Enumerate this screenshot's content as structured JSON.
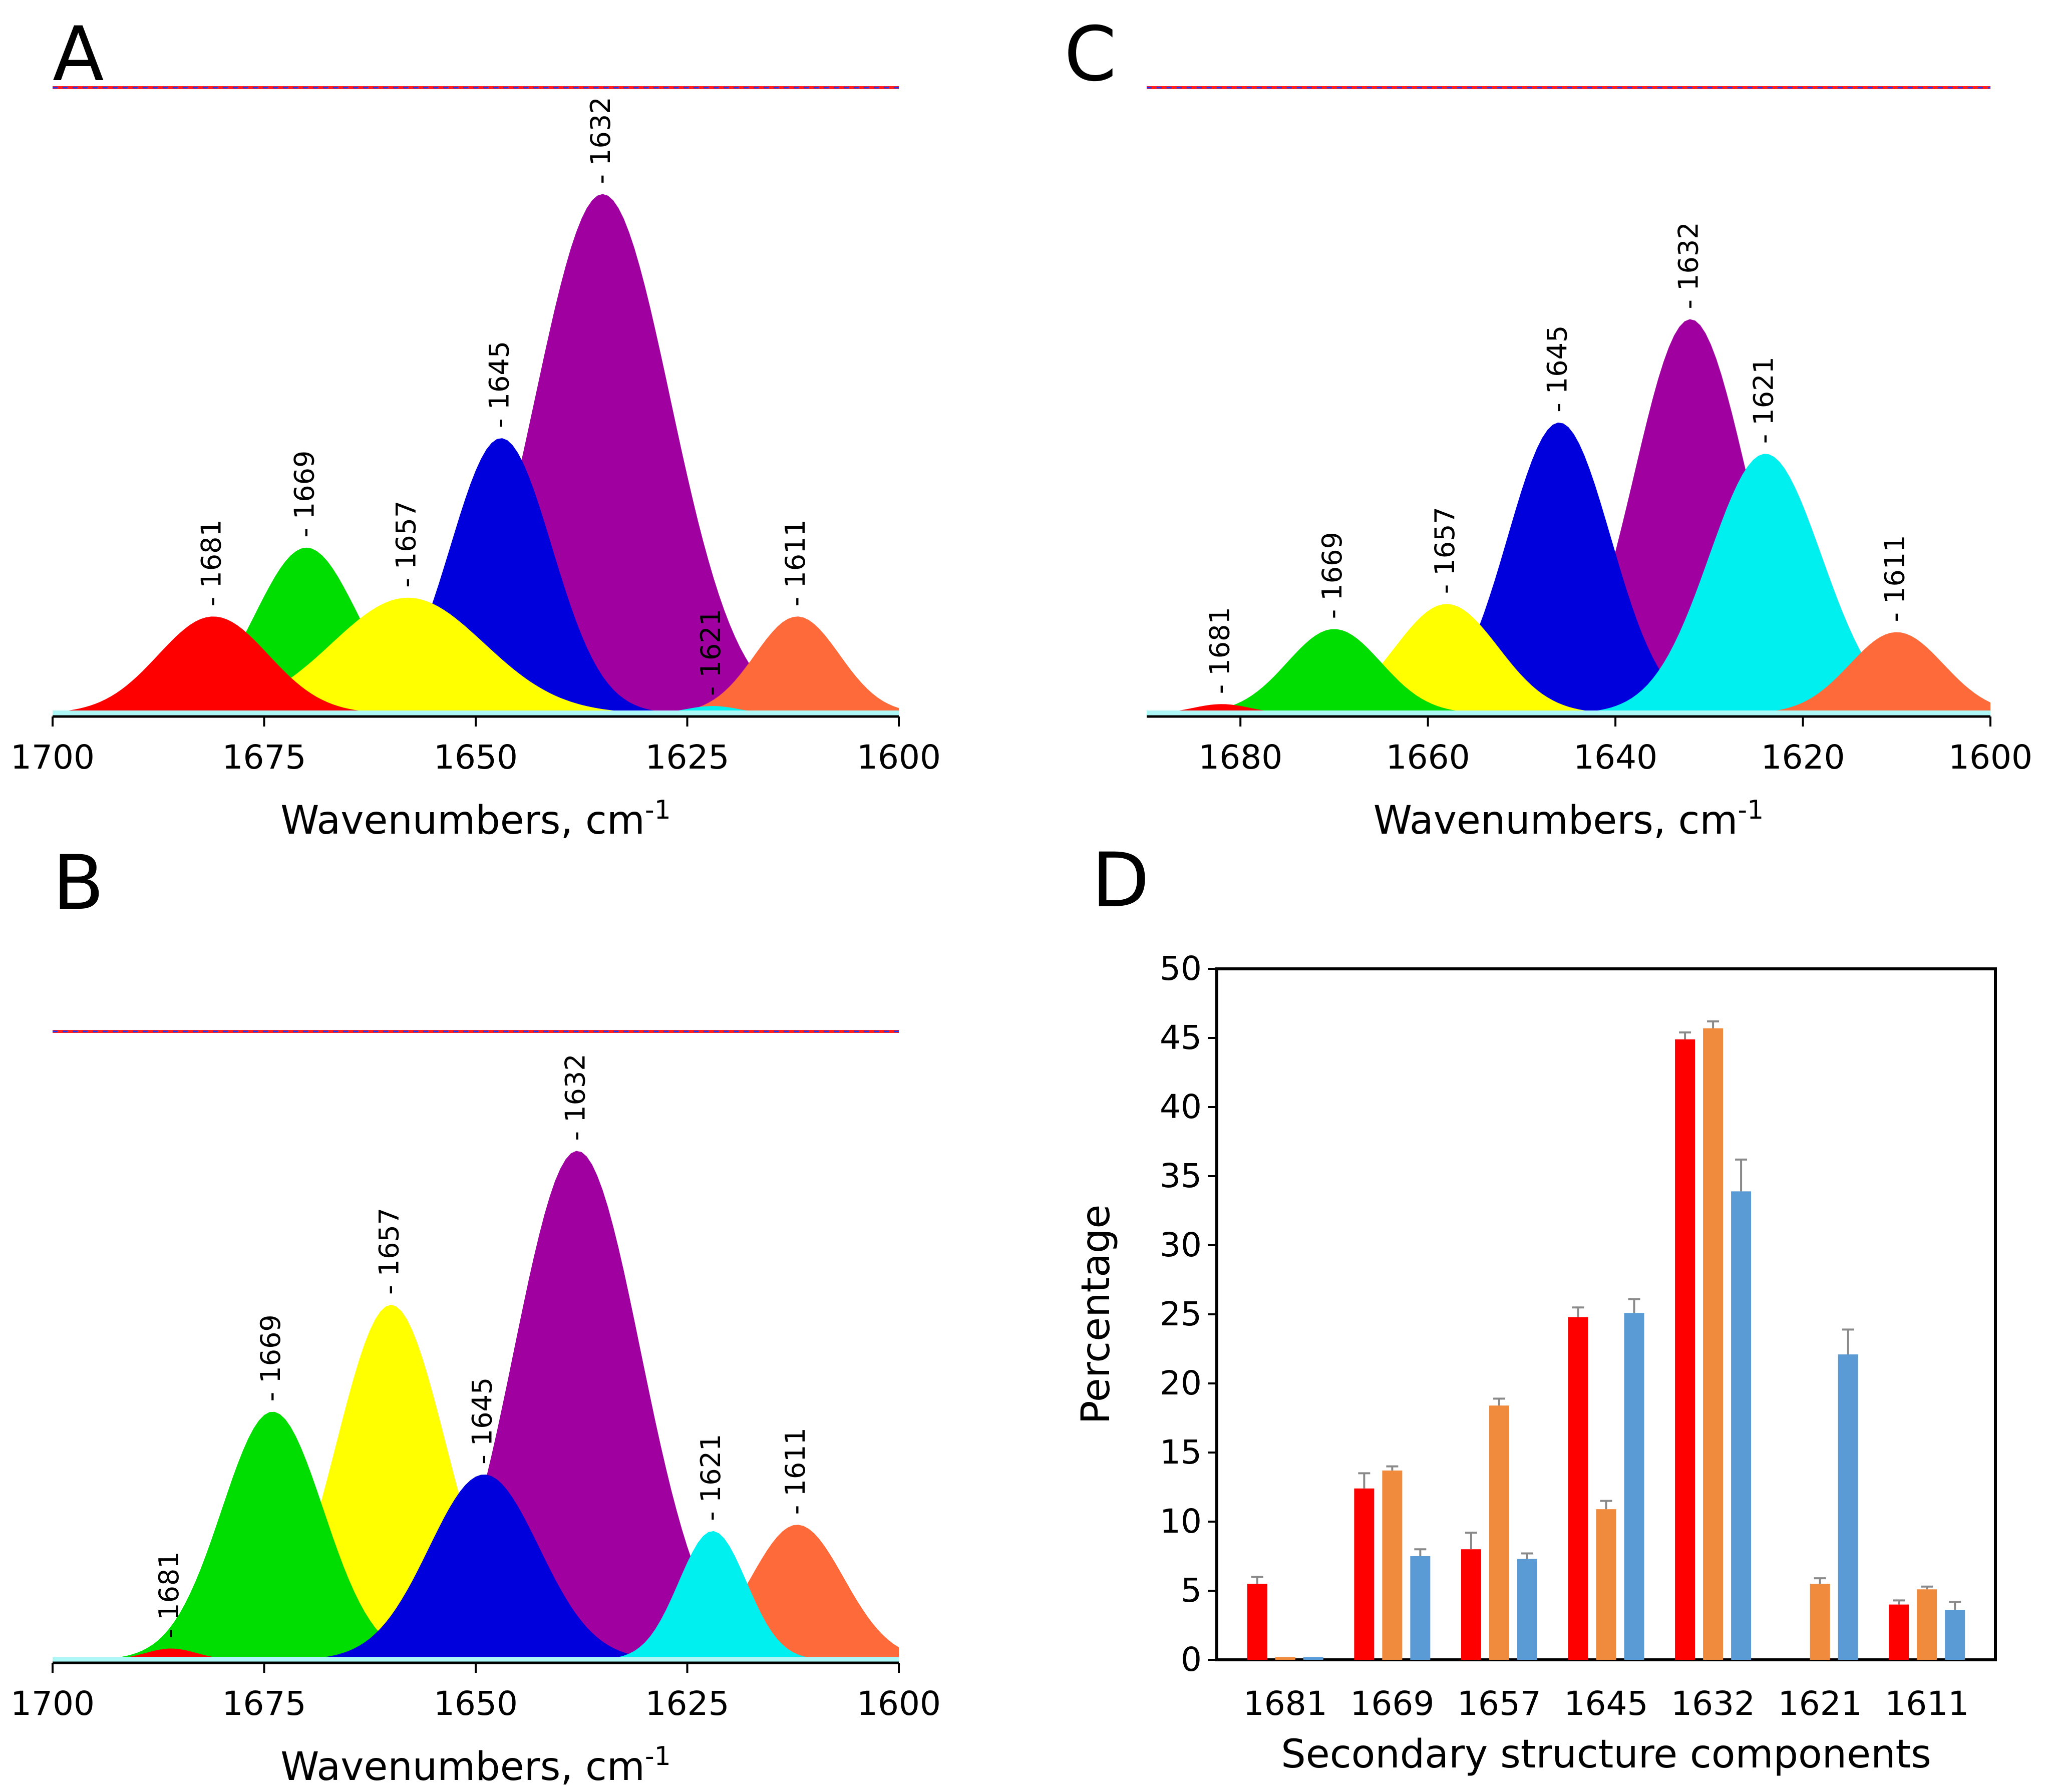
{
  "figure": {
    "panels": [
      "A",
      "B",
      "C",
      "D"
    ]
  },
  "chart_data": [
    {
      "panel": "A",
      "type": "area",
      "title": "",
      "xlabel": "Wavenumbers, cm-1",
      "xlabel_main": "Wavenumbers, cm",
      "xlabel_sup": "-1",
      "ylabel": "",
      "xlim": [
        1700,
        1600
      ],
      "ylim": [
        0,
        1.0
      ],
      "xticks": [
        1700,
        1675,
        1650,
        1625,
        1600
      ],
      "xtick_labels": [
        "1700",
        "1675",
        "1650",
        "1625",
        "1600"
      ],
      "envelope_peak": {
        "x": 1636,
        "y": 1.0
      },
      "series": [
        {
          "name": "1681",
          "label": "1681",
          "center": 1681,
          "amplitude": 0.155,
          "width": 6.5,
          "color": "#ff0000"
        },
        {
          "name": "1669",
          "label": "1669",
          "center": 1670,
          "amplitude": 0.265,
          "width": 6.0,
          "color": "#00dd00"
        },
        {
          "name": "1657",
          "label": "1657",
          "center": 1658,
          "amplitude": 0.185,
          "width": 9.0,
          "color": "#ffff00"
        },
        {
          "name": "1645",
          "label": "1645",
          "center": 1647,
          "amplitude": 0.44,
          "width": 6.0,
          "color": "#0000dd"
        },
        {
          "name": "1632",
          "label": "1632",
          "center": 1635,
          "amplitude": 0.83,
          "width": 8.0,
          "color": "#a000a0"
        },
        {
          "name": "1621",
          "label": "1621",
          "center": 1622,
          "amplitude": 0.012,
          "width": 3.0,
          "color": "#00f0f0"
        },
        {
          "name": "1611",
          "label": "1611",
          "center": 1612,
          "amplitude": 0.155,
          "width": 5.0,
          "color": "#ff6a3a"
        }
      ]
    },
    {
      "panel": "B",
      "type": "area",
      "title": "",
      "xlabel": "Wavenumbers, cm-1",
      "xlabel_main": "Wavenumbers, cm",
      "xlabel_sup": "-1",
      "ylabel": "",
      "xlim": [
        1700,
        1600
      ],
      "ylim": [
        0,
        1.0
      ],
      "xticks": [
        1700,
        1675,
        1650,
        1625,
        1600
      ],
      "xtick_labels": [
        "1700",
        "1675",
        "1650",
        "1625",
        "1600"
      ],
      "envelope_peak": {
        "x": 1645,
        "y": 1.0
      },
      "series": [
        {
          "name": "1681",
          "label": "1681",
          "center": 1686,
          "amplitude": 0.018,
          "width": 3.0,
          "color": "#ff0000"
        },
        {
          "name": "1669",
          "label": "1669",
          "center": 1674,
          "amplitude": 0.395,
          "width": 6.0,
          "color": "#00dd00"
        },
        {
          "name": "1657",
          "label": "1657",
          "center": 1660,
          "amplitude": 0.565,
          "width": 6.5,
          "color": "#ffff00"
        },
        {
          "name": "1645",
          "label": "1645",
          "center": 1649,
          "amplitude": 0.295,
          "width": 6.5,
          "color": "#0000dd"
        },
        {
          "name": "1632",
          "label": "1632",
          "center": 1638,
          "amplitude": 0.81,
          "width": 7.5,
          "color": "#a000a0"
        },
        {
          "name": "1621",
          "label": "1621",
          "center": 1622,
          "amplitude": 0.205,
          "width": 4.0,
          "color": "#00f0f0"
        },
        {
          "name": "1611",
          "label": "1611",
          "center": 1612,
          "amplitude": 0.215,
          "width": 5.5,
          "color": "#ff6a3a"
        }
      ]
    },
    {
      "panel": "C",
      "type": "area",
      "title": "",
      "xlabel": "Wavenumbers, cm-1",
      "xlabel_main": "Wavenumbers, cm",
      "xlabel_sup": "-1",
      "ylabel": "",
      "xlim": [
        1690,
        1600
      ],
      "ylim": [
        0,
        1.0
      ],
      "xticks": [
        1680,
        1660,
        1640,
        1620,
        1600
      ],
      "xtick_labels": [
        "1680",
        "1660",
        "1640",
        "1620",
        "1600"
      ],
      "envelope_peak": {
        "x": 1631,
        "y": 1.0
      },
      "series": [
        {
          "name": "1681",
          "label": "1681",
          "center": 1682,
          "amplitude": 0.015,
          "width": 3.0,
          "color": "#ff0000"
        },
        {
          "name": "1669",
          "label": "1669",
          "center": 1670,
          "amplitude": 0.135,
          "width": 5.0,
          "color": "#00dd00"
        },
        {
          "name": "1657",
          "label": "1657",
          "center": 1658,
          "amplitude": 0.175,
          "width": 5.5,
          "color": "#ffff00"
        },
        {
          "name": "1645",
          "label": "1645",
          "center": 1646,
          "amplitude": 0.465,
          "width": 5.5,
          "color": "#0000dd"
        },
        {
          "name": "1632",
          "label": "1632",
          "center": 1632,
          "amplitude": 0.63,
          "width": 6.0,
          "color": "#a000a0"
        },
        {
          "name": "1621",
          "label": "1621",
          "center": 1624,
          "amplitude": 0.415,
          "width": 6.0,
          "color": "#00f0f0"
        },
        {
          "name": "1611",
          "label": "1611",
          "center": 1610,
          "amplitude": 0.13,
          "width": 5.0,
          "color": "#ff6a3a"
        }
      ]
    },
    {
      "panel": "D",
      "type": "bar",
      "title": "",
      "xlabel": "Secondary structure components",
      "ylabel": "Percentage",
      "ylim": [
        0,
        50
      ],
      "yticks": [
        0,
        5,
        10,
        15,
        20,
        25,
        30,
        35,
        40,
        45,
        50
      ],
      "ytick_labels": [
        "0",
        "5",
        "10",
        "15",
        "20",
        "25",
        "30",
        "35",
        "40",
        "45",
        "50"
      ],
      "categories": [
        "1681",
        "1669",
        "1657",
        "1645",
        "1632",
        "1621",
        "1611"
      ],
      "series": [
        {
          "name": "A",
          "color": "#ff0000",
          "values": [
            5.5,
            12.4,
            8.0,
            24.8,
            44.9,
            0,
            4.0
          ],
          "errors": [
            0.5,
            1.1,
            1.2,
            0.7,
            0.5,
            0,
            0.3
          ]
        },
        {
          "name": "B",
          "color": "#f08a3c",
          "values": [
            0.2,
            13.7,
            18.4,
            10.9,
            45.7,
            5.5,
            5.1
          ],
          "errors": [
            0,
            0.3,
            0.5,
            0.6,
            0.5,
            0.4,
            0.2
          ]
        },
        {
          "name": "C",
          "color": "#5b9bd5",
          "values": [
            0.2,
            7.5,
            7.3,
            25.1,
            33.9,
            22.1,
            3.6
          ],
          "errors": [
            0,
            0.5,
            0.4,
            1.0,
            2.3,
            1.8,
            0.6
          ]
        }
      ]
    }
  ]
}
